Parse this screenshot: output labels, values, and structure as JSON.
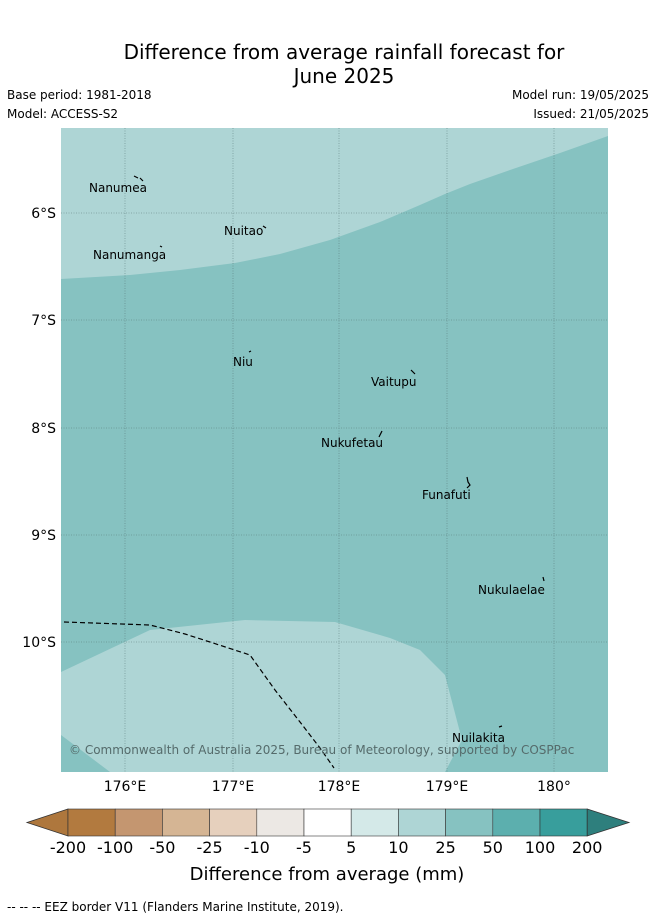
{
  "header": {
    "title_line1": "Difference from average rainfall forecast for",
    "title_line2": "June 2025",
    "base_period": "Base period: 1981-2018",
    "model": "Model: ACCESS-S2",
    "model_run": "Model run: 19/05/2025",
    "issued": "Issued: 21/05/2025"
  },
  "map": {
    "lon_ticks": [
      "176°E",
      "177°E",
      "178°E",
      "179°E",
      "180°"
    ],
    "lat_ticks": [
      "6°S",
      "7°S",
      "8°S",
      "9°S",
      "10°S"
    ],
    "places": [
      {
        "name": "Nanumea"
      },
      {
        "name": "Nuitao"
      },
      {
        "name": "Nanumanga"
      },
      {
        "name": "Niu"
      },
      {
        "name": "Vaitupu"
      },
      {
        "name": "Nukufetau"
      },
      {
        "name": "Funafuti"
      },
      {
        "name": "Nukulaelae"
      },
      {
        "name": "Nuilakita"
      }
    ],
    "copyright": "© Commonwealth of Australia 2025, Bureau of Meteorology, supported by COSPPac",
    "colors": {
      "band_10_25": "#aed5d5",
      "band_25_50": "#86c2c1"
    }
  },
  "colorbar": {
    "labels": [
      "-200",
      "-100",
      "-50",
      "-25",
      "-10",
      "-5",
      "5",
      "10",
      "25",
      "50",
      "100",
      "200"
    ],
    "colors": [
      "#ae773d",
      "#b27a3f",
      "#c49670",
      "#d5b594",
      "#e6d0bd",
      "#ece8e4",
      "#ffffff",
      "#d4e9e8",
      "#aed5d5",
      "#86c2c1",
      "#5cafae",
      "#389e9c",
      "#2e7f7d"
    ],
    "title": "Difference from average (mm)"
  },
  "footer": {
    "legend": "--  --  -- EEZ border V11 (Flanders Marine Institute, 2019)."
  }
}
